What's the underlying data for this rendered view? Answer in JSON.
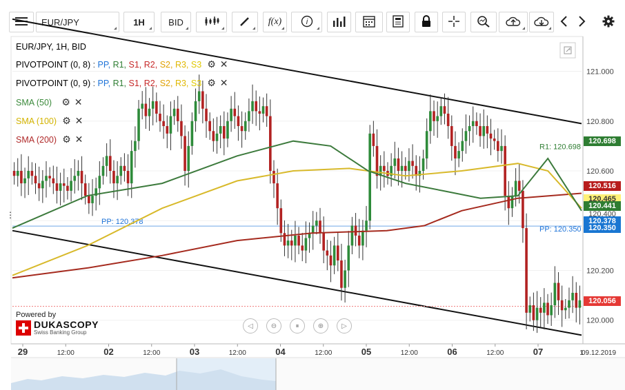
{
  "toolbar": {
    "symbol": "EUR/JPY",
    "timeframe": "1H",
    "side": "BID",
    "buttons": [
      "menu-icon",
      "candles-icon",
      "draw-icon",
      "function-icon",
      "info-icon",
      "volume-icon",
      "calendar-icon",
      "report-icon",
      "lock-icon",
      "crosshair-icon",
      "zoom-icon",
      "upload-icon",
      "download-icon",
      "prev-icon",
      "next-icon",
      "gear-icon"
    ]
  },
  "legend": {
    "title": "EUR/JPY, 1H, BID",
    "pivot1": {
      "name": "PIVOTPOINT (0, 8)",
      "sep": " : ",
      "items": [
        "PP,",
        "R1,",
        "S1,",
        "R2,",
        "S2,",
        "R3,",
        "S3"
      ]
    },
    "pivot2": {
      "name": "PIVOTPOINT (0, 9)",
      "sep": " : ",
      "items": [
        "PP,",
        "R1,",
        "S1,",
        "R2,",
        "S2,",
        "R3,",
        "S3"
      ]
    },
    "sma50": "SMA (50)",
    "sma100": "SMA (100)",
    "sma200": "SMA (200)"
  },
  "branding": {
    "powered": "Powered by",
    "name": "DUKASCOPY",
    "tagline": "Swiss Banking Group"
  },
  "chart_data": {
    "type": "candlestick",
    "title": "EUR/JPY, 1H, BID",
    "y_ticks": [
      121.0,
      120.8,
      120.6,
      120.4,
      120.2,
      120.0
    ],
    "y_tick_labels": [
      "121.000",
      "120.800",
      "120.600",
      "120.400",
      "120.200",
      "120.000"
    ],
    "ylim": [
      119.905,
      121.14
    ],
    "x_tick_labels": [
      "29",
      "12:00",
      "02",
      "12:00",
      "03",
      "12:00",
      "04",
      "12:00",
      "05",
      "12:00",
      "06",
      "12:00",
      "07",
      "1",
      "09.12.2019"
    ],
    "x_label_bold": [
      true,
      false,
      true,
      false,
      true,
      false,
      true,
      false,
      true,
      false,
      true,
      false,
      true,
      false,
      false
    ],
    "candles_close": [
      120.58,
      120.6,
      120.55,
      120.57,
      120.6,
      120.58,
      120.55,
      120.53,
      120.56,
      120.58,
      120.57,
      120.55,
      120.52,
      120.55,
      120.54,
      120.52,
      120.56,
      120.58,
      120.6,
      120.55,
      120.5,
      120.47,
      120.5,
      120.53,
      120.58,
      120.62,
      120.66,
      120.6,
      120.55,
      120.58,
      120.62,
      120.6,
      120.55,
      120.68,
      120.72,
      120.85,
      120.87,
      120.82,
      120.85,
      120.88,
      120.83,
      120.8,
      120.78,
      120.75,
      120.82,
      120.85,
      120.8,
      120.74,
      120.6,
      120.7,
      120.8,
      120.88,
      120.92,
      120.85,
      120.8,
      120.76,
      120.72,
      120.75,
      120.78,
      120.73,
      120.8,
      120.85,
      120.82,
      120.78,
      120.76,
      120.8,
      120.84,
      120.88,
      120.84,
      120.83,
      120.86,
      120.82,
      120.6,
      120.55,
      120.45,
      120.35,
      120.3,
      120.32,
      120.3,
      120.34,
      120.3,
      120.28,
      120.33,
      120.35,
      120.38,
      120.4,
      120.35,
      120.28,
      120.26,
      120.22,
      120.3,
      120.24,
      120.13,
      120.2,
      120.3,
      120.38,
      120.34,
      120.3,
      120.36,
      120.4,
      120.75,
      120.7,
      120.58,
      120.62,
      120.6,
      120.58,
      120.62,
      120.65,
      120.6,
      120.62,
      120.6,
      120.64,
      120.62,
      120.58,
      120.6,
      120.65,
      120.76,
      120.84,
      120.8,
      120.82,
      120.86,
      120.83,
      120.78,
      120.7,
      120.65,
      120.68,
      120.72,
      120.76,
      120.78,
      120.8,
      120.78,
      120.74,
      120.78,
      120.75,
      120.73,
      120.72,
      120.68,
      120.7,
      120.5,
      120.45,
      120.5,
      120.56,
      120.52,
      120.37,
      120.03,
      120.06,
      120.0,
      120.05,
      120.03,
      120.07,
      120.02,
      120.06,
      120.15,
      120.08,
      120.04,
      120.05,
      120.08,
      120.11,
      120.05,
      120.08
    ],
    "sma50": [
      [
        0,
        120.37
      ],
      [
        20,
        120.5
      ],
      [
        40,
        120.55
      ],
      [
        60,
        120.66
      ],
      [
        75,
        120.72
      ],
      [
        85,
        120.7
      ],
      [
        95,
        120.6
      ],
      [
        105,
        120.55
      ],
      [
        115,
        120.52
      ],
      [
        125,
        120.49
      ],
      [
        135,
        120.5
      ],
      [
        143,
        120.65
      ],
      [
        152,
        120.44
      ]
    ],
    "sma100": [
      [
        0,
        120.18
      ],
      [
        20,
        120.3
      ],
      [
        40,
        120.45
      ],
      [
        60,
        120.56
      ],
      [
        75,
        120.6
      ],
      [
        90,
        120.61
      ],
      [
        105,
        120.58
      ],
      [
        120,
        120.6
      ],
      [
        135,
        120.63
      ],
      [
        143,
        120.6
      ],
      [
        152,
        120.45
      ]
    ],
    "sma200": [
      [
        0,
        120.17
      ],
      [
        20,
        120.21
      ],
      [
        40,
        120.26
      ],
      [
        60,
        120.32
      ],
      [
        80,
        120.35
      ],
      [
        100,
        120.36
      ],
      [
        110,
        120.38
      ],
      [
        120,
        120.44
      ],
      [
        135,
        120.49
      ],
      [
        152,
        120.51
      ]
    ],
    "channel_upper": [
      [
        0,
        121.21
      ],
      [
        152,
        120.79
      ]
    ],
    "channel_lower": [
      [
        0,
        120.36
      ],
      [
        152,
        119.94
      ]
    ],
    "pp_line": {
      "value": 120.378,
      "label_left": "PP: 120.378",
      "label_right": "PP: 120.350"
    },
    "r1_label": "R1: 120.698",
    "current_line": 120.056,
    "price_tags": [
      {
        "value": "120.698",
        "color": "#2e7d32"
      },
      {
        "value": "120.516",
        "color": "#b71c1c"
      },
      {
        "value": "120.465",
        "color": "#fff176"
      },
      {
        "value": "120.441",
        "color": "#2e7d32"
      },
      {
        "value": "120.400",
        "color": "plain"
      },
      {
        "value": "120.378",
        "color": "#1976d2"
      },
      {
        "value": "120.350",
        "color": "#1976d2"
      },
      {
        "value": "120.056",
        "color": "#e53935"
      }
    ]
  }
}
